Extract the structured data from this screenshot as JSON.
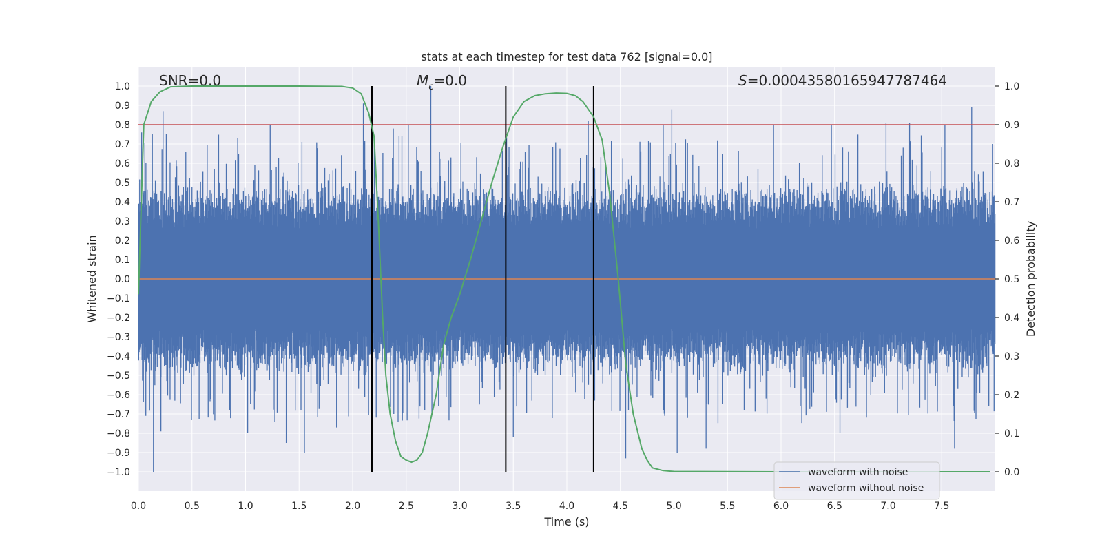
{
  "chart_data": {
    "type": "line",
    "title": "stats at each timestep for test data 762 [signal=0.0]",
    "xlabel": "Time (s)",
    "ylabel": "Whitened strain",
    "y2label": "Detection probability",
    "xlim": [
      0.0,
      8.0
    ],
    "ylim": [
      -1.1,
      1.1
    ],
    "y2lim": [
      -0.05,
      1.05
    ],
    "x_ticks": [
      0.0,
      0.5,
      1.0,
      1.5,
      2.0,
      2.5,
      3.0,
      3.5,
      4.0,
      4.5,
      5.0,
      5.5,
      6.0,
      6.5,
      7.0,
      7.5
    ],
    "x_tick_labels": [
      "0.0",
      "0.5",
      "1.0",
      "1.5",
      "2.0",
      "2.5",
      "3.0",
      "3.5",
      "4.0",
      "4.5",
      "5.0",
      "5.5",
      "6.0",
      "6.5",
      "7.0",
      "7.5"
    ],
    "y_ticks": [
      1.0,
      0.9,
      0.8,
      0.7,
      0.6,
      0.5,
      0.4,
      0.3,
      0.2,
      0.1,
      0.0,
      -0.1,
      -0.2,
      -0.3,
      -0.4,
      -0.5,
      -0.6,
      -0.7,
      -0.8,
      -0.9,
      -1.0
    ],
    "y_tick_labels": [
      "1.0",
      "0.9",
      "0.8",
      "0.7",
      "0.6",
      "0.5",
      "0.4",
      "0.3",
      "0.2",
      "0.1",
      "0.0",
      "−0.1",
      "−0.2",
      "−0.3",
      "−0.4",
      "−0.5",
      "−0.6",
      "−0.7",
      "−0.8",
      "−0.9",
      "−1.0"
    ],
    "y2_ticks": [
      1.0,
      0.9,
      0.8,
      0.7,
      0.6,
      0.5,
      0.4,
      0.3,
      0.2,
      0.1,
      0.0
    ],
    "y2_tick_labels": [
      "1.0",
      "0.9",
      "0.8",
      "0.7",
      "0.6",
      "0.5",
      "0.4",
      "0.3",
      "0.2",
      "0.1",
      "0.0"
    ],
    "annotations": {
      "snr": "SNR=0.0",
      "mc_symbol": "M",
      "mc_subscript": "c",
      "mc_value": "=0.0",
      "s_symbol": "S",
      "s_value": "=0.00043580165947787464"
    },
    "threshold": {
      "value": 0.8,
      "axis": "left",
      "color": "#c44e52"
    },
    "vertical_lines": [
      2.18,
      3.43,
      4.25
    ],
    "noise_series": {
      "name": "waveform with noise",
      "color": "#4c72b0",
      "typical_amplitude": 0.4,
      "spike_peaks_positive": [
        [
          0.03,
          0.76
        ],
        [
          0.07,
          0.6
        ],
        [
          0.13,
          0.75
        ],
        [
          0.23,
          0.87
        ],
        [
          0.26,
          0.75
        ],
        [
          1.23,
          0.8
        ],
        [
          2.1,
          0.91
        ],
        [
          2.18,
          0.88
        ],
        [
          2.38,
          0.78
        ],
        [
          2.52,
          0.8
        ],
        [
          2.73,
          1.0
        ],
        [
          3.43,
          0.9
        ],
        [
          4.2,
          0.82
        ],
        [
          4.9,
          0.8
        ],
        [
          4.98,
          0.88
        ],
        [
          5.93,
          0.8
        ],
        [
          6.47,
          0.8
        ],
        [
          6.98,
          0.81
        ],
        [
          7.2,
          0.81
        ],
        [
          7.53,
          0.8
        ],
        [
          7.78,
          0.89
        ]
      ],
      "spike_peaks_negative": [
        [
          0.14,
          -1.0
        ],
        [
          0.21,
          -0.79
        ],
        [
          1.02,
          -0.8
        ],
        [
          1.38,
          -0.85
        ],
        [
          1.55,
          -0.9
        ],
        [
          1.85,
          -0.77
        ],
        [
          3.43,
          -0.85
        ],
        [
          3.5,
          -0.82
        ],
        [
          4.25,
          -0.93
        ],
        [
          4.55,
          -0.93
        ],
        [
          5.03,
          -0.9
        ],
        [
          5.3,
          -0.88
        ],
        [
          6.55,
          -0.8
        ],
        [
          7.62,
          -0.88
        ]
      ]
    },
    "clean_series": {
      "name": "waveform without noise",
      "color": "#dd8452",
      "values": "flat at 0.0"
    },
    "detection_probability": {
      "color": "#55a868",
      "x": [
        0.0,
        0.05,
        0.12,
        0.2,
        0.3,
        0.5,
        1.0,
        1.5,
        1.9,
        2.0,
        2.08,
        2.15,
        2.2,
        2.24,
        2.28,
        2.31,
        2.35,
        2.4,
        2.45,
        2.5,
        2.55,
        2.6,
        2.65,
        2.7,
        2.78,
        2.85,
        2.92,
        3.0,
        3.1,
        3.2,
        3.3,
        3.4,
        3.5,
        3.6,
        3.7,
        3.8,
        3.9,
        4.0,
        4.08,
        4.15,
        4.2,
        4.25,
        4.33,
        4.4,
        4.48,
        4.55,
        4.62,
        4.7,
        4.75,
        4.8,
        4.9,
        5.0,
        6.0,
        7.0,
        7.95
      ],
      "y": [
        0.46,
        0.9,
        0.96,
        0.985,
        0.998,
        1.0,
        1.0,
        1.0,
        0.999,
        0.995,
        0.98,
        0.93,
        0.87,
        0.65,
        0.4,
        0.25,
        0.15,
        0.08,
        0.04,
        0.03,
        0.025,
        0.03,
        0.05,
        0.1,
        0.2,
        0.33,
        0.4,
        0.46,
        0.55,
        0.65,
        0.75,
        0.84,
        0.92,
        0.96,
        0.975,
        0.98,
        0.982,
        0.981,
        0.975,
        0.96,
        0.94,
        0.92,
        0.86,
        0.72,
        0.5,
        0.28,
        0.15,
        0.06,
        0.03,
        0.01,
        0.003,
        0.001,
        0.0,
        0.0,
        0.0
      ]
    },
    "legend": {
      "position": "lower right",
      "entries": [
        {
          "label": "waveform with noise",
          "color": "#4c72b0"
        },
        {
          "label": "waveform without noise",
          "color": "#dd8452"
        }
      ]
    }
  }
}
